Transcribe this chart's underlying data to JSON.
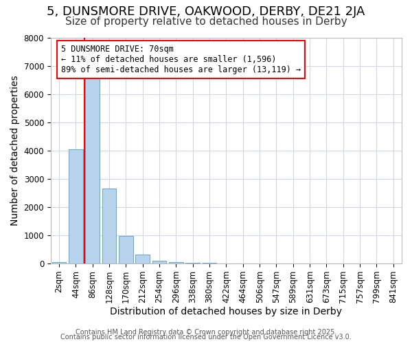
{
  "title1": "5, DUNSMORE DRIVE, OAKWOOD, DERBY, DE21 2JA",
  "title2": "Size of property relative to detached houses in Derby",
  "xlabel": "Distribution of detached houses by size in Derby",
  "ylabel": "Number of detached properties",
  "categories": [
    "2sqm",
    "44sqm",
    "86sqm",
    "128sqm",
    "170sqm",
    "212sqm",
    "254sqm",
    "296sqm",
    "338sqm",
    "380sqm",
    "422sqm",
    "464sqm",
    "506sqm",
    "547sqm",
    "589sqm",
    "631sqm",
    "673sqm",
    "715sqm",
    "757sqm",
    "799sqm",
    "841sqm"
  ],
  "values": [
    55,
    4050,
    6620,
    2650,
    975,
    330,
    105,
    55,
    30,
    15,
    5,
    0,
    0,
    0,
    0,
    0,
    0,
    0,
    0,
    0,
    0
  ],
  "bar_color": "#b8d4ed",
  "bar_edge_color": "#6aaad4",
  "red_line_index": 1.5,
  "ylim": [
    0,
    8000
  ],
  "yticks": [
    0,
    1000,
    2000,
    3000,
    4000,
    5000,
    6000,
    7000,
    8000
  ],
  "annotation_line1": "5 DUNSMORE DRIVE: 70sqm",
  "annotation_line2": "← 11% of detached houses are smaller (1,596)",
  "annotation_line3": "89% of semi-detached houses are larger (13,119) →",
  "footer1": "Contains HM Land Registry data © Crown copyright and database right 2025.",
  "footer2": "Contains public sector information licensed under the Open Government Licence v3.0.",
  "bg_color": "#ffffff",
  "plot_bg_color": "#ffffff",
  "grid_color": "#d0d8e8",
  "title1_fontsize": 13,
  "title2_fontsize": 11,
  "axis_label_fontsize": 10,
  "tick_fontsize": 8.5,
  "annotation_fontsize": 8.5,
  "footer_fontsize": 7
}
